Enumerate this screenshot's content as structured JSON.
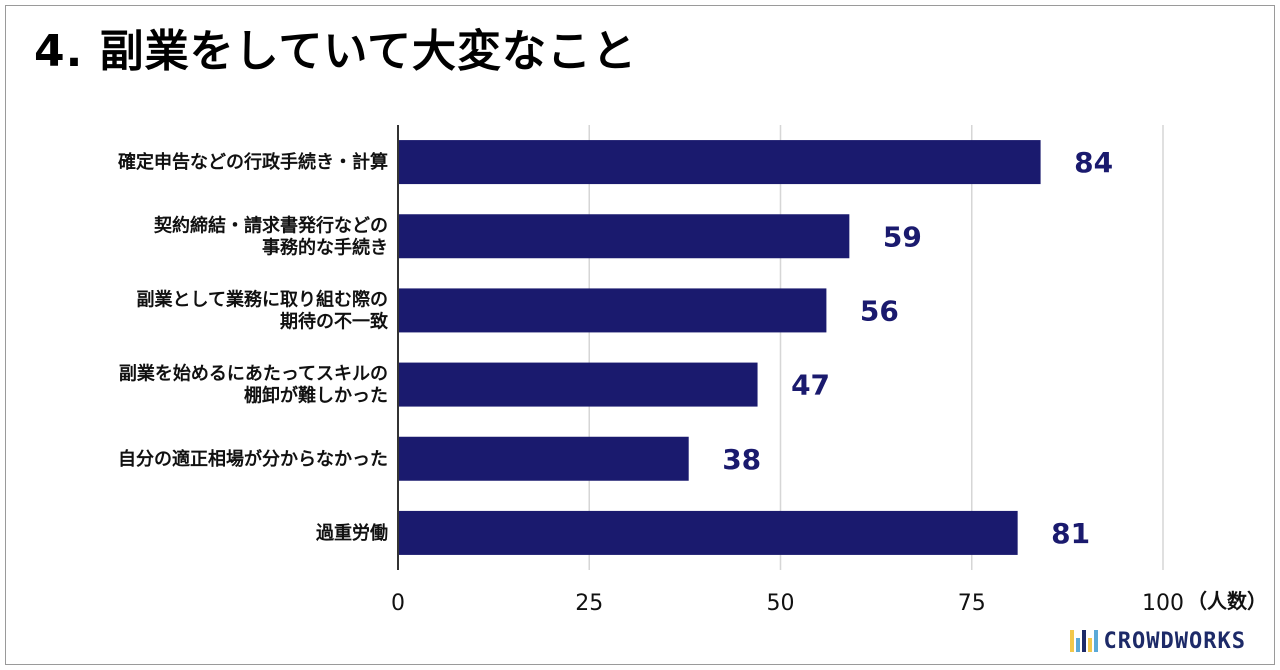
{
  "title": "4. 副業をしていて大変なこと",
  "brand": {
    "name": "CROWDWORKS",
    "color": "#1d2a68",
    "mark_colors": [
      "#f2c84b",
      "#5aa9d8",
      "#1d2a68",
      "#f2c84b",
      "#5aa9d8"
    ]
  },
  "colors": {
    "bar": "#1a1a6e",
    "value_label": "#1a1a6e",
    "grid": "#d6d6d6",
    "axis": "#333333"
  },
  "chart_data": {
    "type": "bar",
    "orientation": "horizontal",
    "categories": [
      [
        "確定申告などの行政手続き・計算"
      ],
      [
        "契約締結・請求書発行などの",
        "事務的な手続き"
      ],
      [
        "副業として業務に取り組む際の",
        "期待の不一致"
      ],
      [
        "副業を始めるにあたってスキルの",
        "棚卸が難しかった"
      ],
      [
        "自分の適正相場が分からなかった"
      ],
      [
        "過重労働"
      ]
    ],
    "values": [
      84,
      59,
      56,
      47,
      38,
      81
    ],
    "xlim": [
      0,
      100
    ],
    "xticks": [
      0,
      25,
      50,
      75,
      100
    ],
    "xunit": "（人数）",
    "grid": true,
    "data_labels": true,
    "legend": "none"
  }
}
